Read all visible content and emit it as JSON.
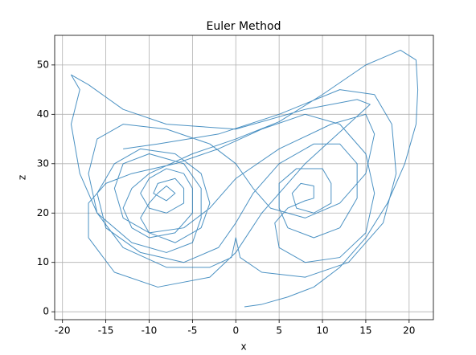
{
  "chart_data": {
    "type": "line",
    "title": "Euler Method",
    "x_label": "x",
    "y_label": "z",
    "color": "#1f77b4",
    "grid": true,
    "xlim": [
      -20.9,
      22.8
    ],
    "ylim": [
      -1.6,
      56
    ],
    "xticks": [
      -20,
      -15,
      -10,
      -5,
      0,
      5,
      10,
      15,
      20
    ],
    "yticks": [
      0,
      10,
      20,
      30,
      40,
      50
    ],
    "x": [
      1,
      3,
      6,
      9,
      12,
      15,
      17.5,
      19.5,
      20.8,
      21,
      20.8,
      19,
      17,
      15,
      10,
      5,
      0,
      -5,
      -10,
      -12,
      -13,
      -12,
      -10,
      -7,
      -5,
      -5,
      -6,
      -8,
      -10,
      -11,
      -10,
      -8,
      -6,
      -6,
      -7,
      -9,
      -9.5,
      -8,
      -7,
      -8,
      -9,
      -10,
      -11,
      -10,
      -7,
      -4,
      -3,
      -4,
      -7,
      -11,
      -14,
      -16,
      -15,
      -11,
      -6,
      -2,
      0,
      2,
      5,
      9,
      12,
      14,
      14,
      12,
      9,
      6,
      5,
      5,
      7,
      10,
      11,
      11,
      9,
      7,
      6.5,
      7.5,
      9,
      9,
      8,
      6,
      4.5,
      5,
      8,
      12,
      15,
      16,
      15,
      12,
      8,
      3,
      -2,
      -7,
      -12,
      -15,
      -17,
      -17,
      -14,
      -9,
      -3,
      0,
      3,
      8,
      13,
      15.5,
      14,
      8,
      0,
      -8,
      -13,
      -17,
      -19,
      -18,
      -19,
      -18,
      -16,
      -12,
      -8,
      -5,
      -4,
      -4,
      -6,
      -10,
      -13,
      -14,
      -13,
      -10,
      -6,
      -3,
      0,
      5,
      11,
      15,
      16,
      15,
      12,
      8,
      4,
      2,
      0,
      -3,
      -8,
      -13,
      -16,
      -17,
      -16,
      -13,
      -8,
      -3,
      -0.5,
      0,
      0.5,
      3,
      8,
      13,
      17,
      18.5,
      18,
      16,
      12,
      5,
      -2,
      -9,
      -13
    ],
    "values": [
      1,
      1.5,
      3,
      5,
      9,
      15,
      22,
      30,
      38,
      45,
      51,
      53,
      51.5,
      50,
      44,
      38.5,
      35,
      32,
      28,
      25,
      21,
      17,
      15,
      16,
      20,
      25,
      28,
      29,
      27,
      24,
      21,
      20,
      22,
      25,
      27,
      26,
      24,
      22.5,
      24,
      25.5,
      24,
      22,
      19,
      16,
      14,
      17,
      22,
      28,
      32,
      33,
      30,
      24,
      17,
      12,
      10,
      13,
      18,
      24,
      30,
      34,
      34,
      30,
      23,
      17,
      15,
      17,
      21,
      26,
      29,
      29,
      26,
      22,
      20,
      21,
      24,
      26,
      25.5,
      23,
      22.5,
      21,
      18,
      13,
      10,
      11,
      16,
      24,
      32,
      38,
      40,
      37,
      33,
      30,
      28,
      26,
      22,
      15,
      8,
      5,
      7,
      12,
      20,
      30,
      38,
      42,
      43,
      41,
      37,
      38,
      41,
      46,
      48,
      45,
      38,
      28,
      20,
      14,
      12,
      14,
      19,
      25,
      30,
      32,
      30,
      25,
      19,
      16,
      17,
      21,
      27,
      33,
      38,
      40,
      36,
      28,
      22,
      19,
      21,
      25,
      30,
      34,
      37,
      38,
      35,
      28,
      20,
      13,
      9,
      9,
      11,
      15,
      11,
      8,
      7,
      10,
      18,
      28,
      38,
      44,
      45,
      40,
      36,
      34,
      33
    ]
  }
}
